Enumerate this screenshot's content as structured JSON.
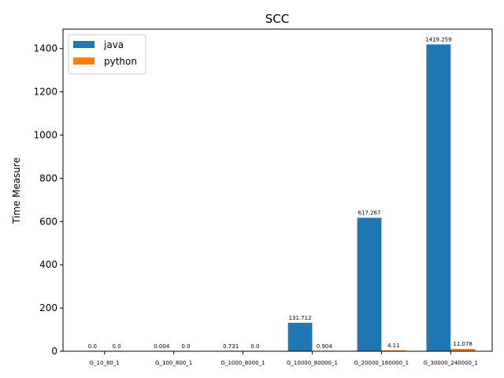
{
  "chart_data": {
    "type": "bar",
    "title": "SCC",
    "xlabel": "",
    "ylabel": "Time Measure",
    "ylim": [
      0,
      1490
    ],
    "yticks": [
      0,
      200,
      400,
      600,
      800,
      1000,
      1200,
      1400
    ],
    "grid": false,
    "legend_position": "top-left",
    "categories": [
      "G_10_80_1",
      "G_100_800_1",
      "G_1000_8000_1",
      "G_10000_80000_1",
      "G_20000_160000_1",
      "G_30000_240000_1"
    ],
    "series": [
      {
        "name": "java",
        "color": "#1f77b4",
        "values": [
          0.0,
          0.004,
          0.731,
          131.712,
          617.267,
          1419.259
        ],
        "labels": [
          "0.0",
          "0.004",
          "0.731",
          "131.712",
          "617.267",
          "1419.259"
        ]
      },
      {
        "name": "python",
        "color": "#ff7f0e",
        "values": [
          0.0,
          0.0,
          0.0,
          0.904,
          4.11,
          11.078
        ],
        "labels": [
          "0.0",
          "0.0",
          "0.0",
          "0.904",
          "4.11",
          "11.078"
        ]
      }
    ]
  }
}
